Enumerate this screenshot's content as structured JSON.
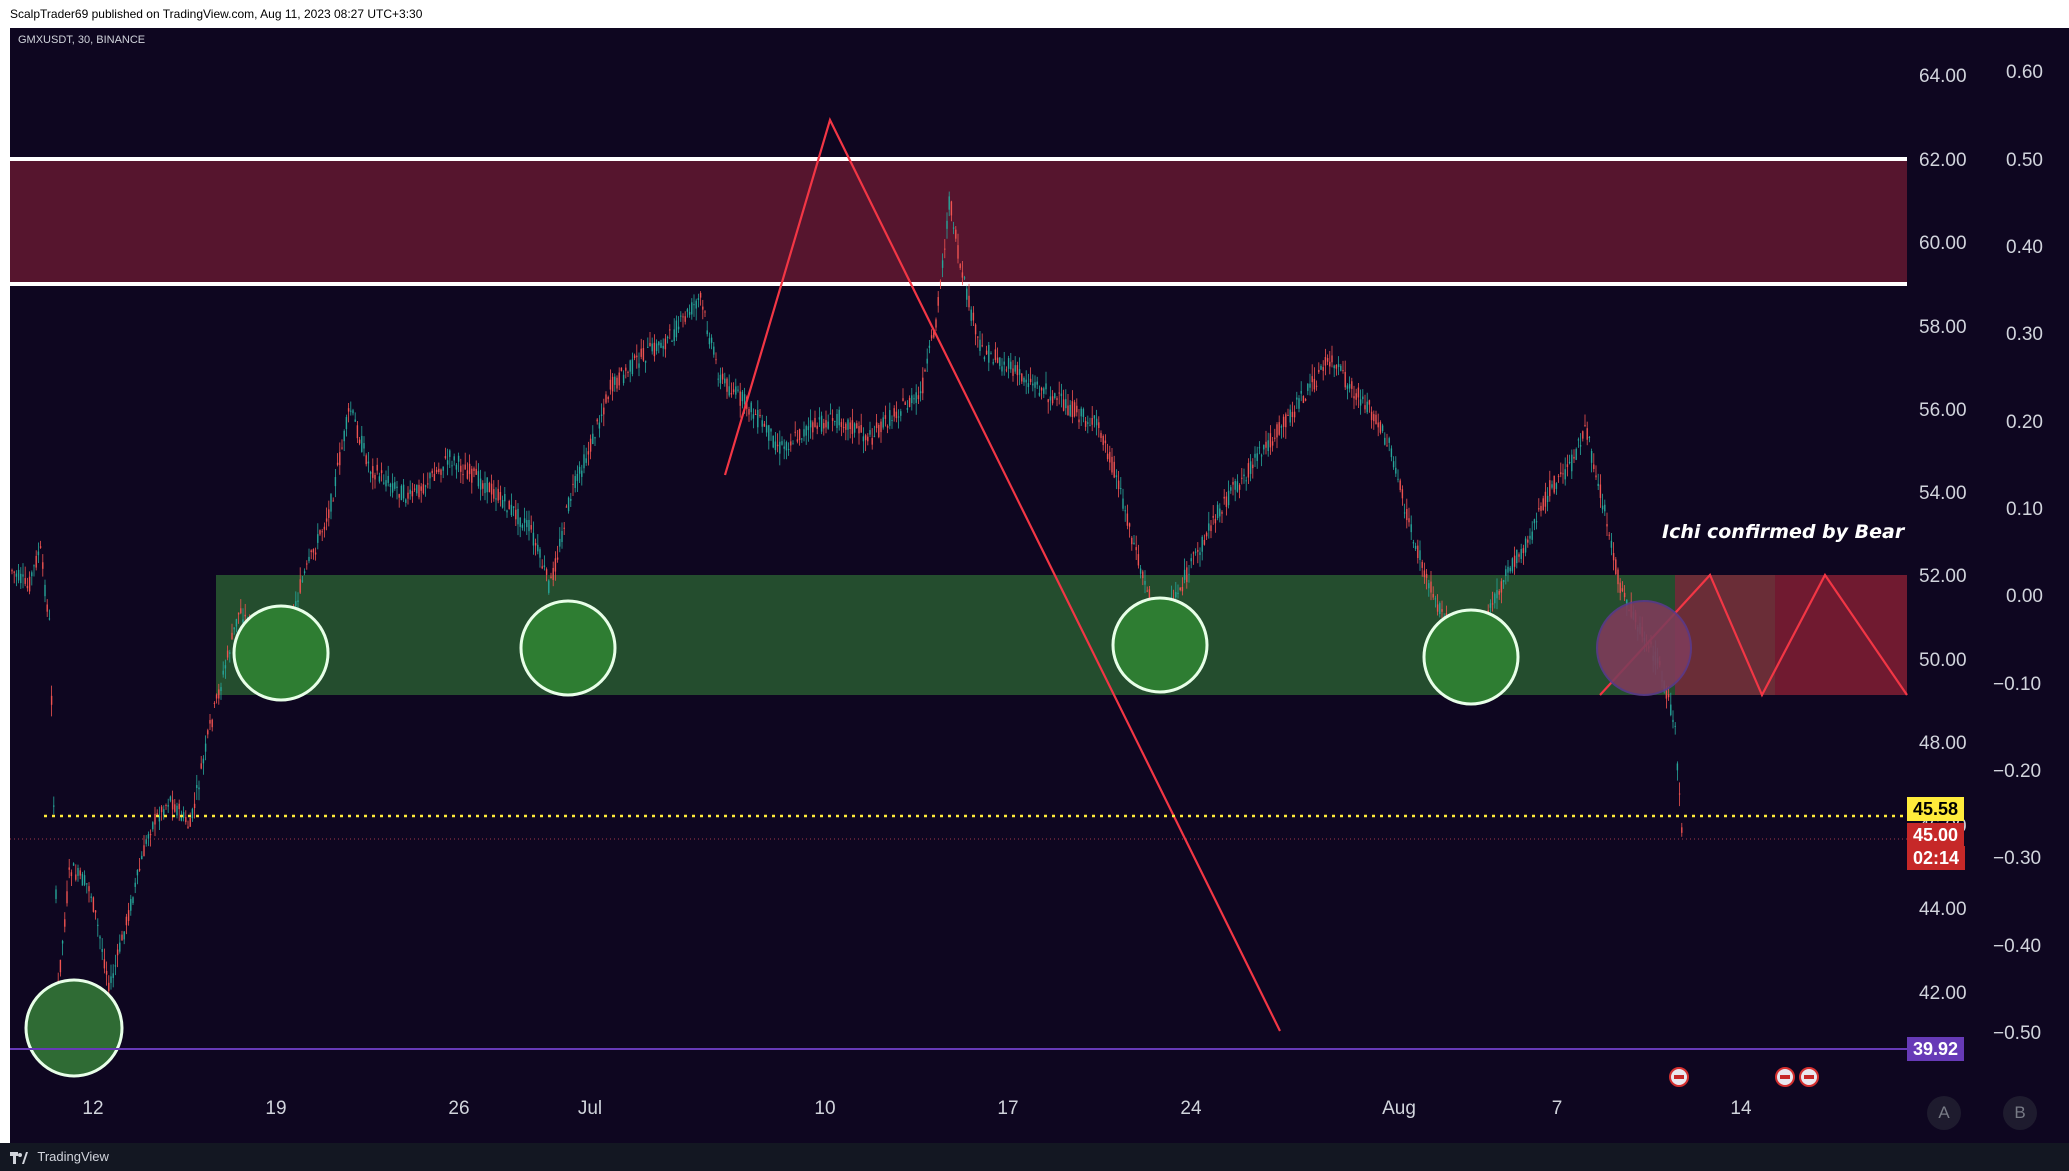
{
  "header": {
    "published_text": "ScalpTrader69 published on TradingView.com, Aug 11, 2023 08:27 UTC+3:30"
  },
  "chart": {
    "symbol_line": "GMXUSDT, 30, BINANCE",
    "annotation": "Ichi confirmed by Bear cro",
    "colors": {
      "background": "#0e0620",
      "resistance_zone": "#5c1730",
      "support_zone": "#23482c",
      "circle_fill": "#2e7d32",
      "red_line": "#f23645",
      "yellow_line": "#ffeb3b",
      "purple_line": "#673ab7"
    }
  },
  "price_axis": {
    "labels": [
      "64.00",
      "62.00",
      "60.00",
      "58.00",
      "56.00",
      "54.00",
      "52.00",
      "50.00",
      "48.00",
      "46.00",
      "44.00",
      "42.00"
    ],
    "current_price": "45.00",
    "countdown": "02:14",
    "yellow_level": "45.58",
    "purple_level": "39.92"
  },
  "secondary_axis": {
    "labels": [
      "0.60",
      "0.50",
      "0.40",
      "0.30",
      "0.20",
      "0.10",
      "0.00",
      "−0.10",
      "−0.20",
      "−0.30",
      "−0.40",
      "−0.50"
    ]
  },
  "time_axis": {
    "labels": [
      "12",
      "19",
      "26",
      "Jul",
      "10",
      "17",
      "24",
      "Aug",
      "7",
      "14"
    ]
  },
  "controls": {
    "auto_label": "A",
    "log_label": "B"
  },
  "footer": {
    "brand": "TradingView"
  }
}
